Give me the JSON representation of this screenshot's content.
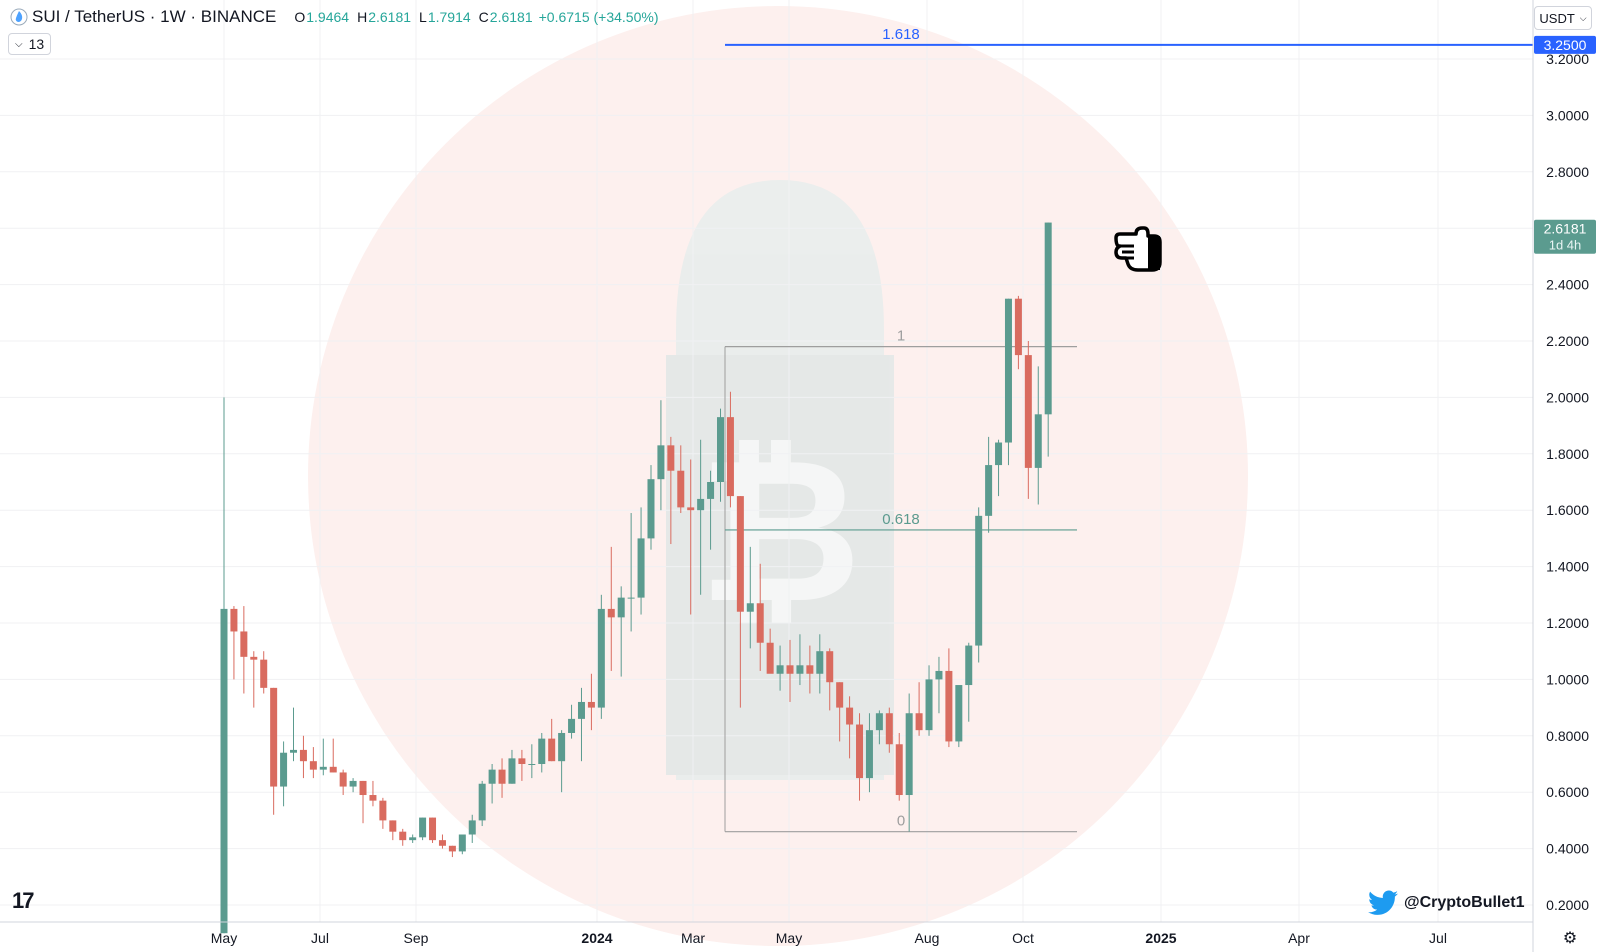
{
  "header": {
    "symbol_title": "SUI / TetherUS · 1W · BINANCE",
    "ohlc": [
      {
        "key": "O",
        "value": "1.9464"
      },
      {
        "key": "H",
        "value": "2.6181"
      },
      {
        "key": "L",
        "value": "1.7914"
      },
      {
        "key": "C",
        "value": "2.6181"
      }
    ],
    "change": "+0.6715 (+34.50%)",
    "indicator_count": "13",
    "currency": "USDT"
  },
  "watermark": "@CryptoBullet1",
  "colors": {
    "up": "#5b9b8f",
    "down": "#d96b5f",
    "fib_target": "#2962ff",
    "fib_mid": "#5b9b8f",
    "fib_box": "#9e9e9e"
  },
  "chart_data": {
    "type": "candlestick",
    "ylim": [
      0.15,
      3.35
    ],
    "y_ticks": [
      "0.2000",
      "0.4000",
      "0.6000",
      "0.8000",
      "1.0000",
      "1.2000",
      "1.4000",
      "1.6000",
      "1.8000",
      "2.0000",
      "2.2000",
      "2.4000",
      "2.6000",
      "2.8000",
      "3.0000",
      "3.2000"
    ],
    "x_ticks": [
      "May",
      "Jul",
      "Sep",
      "2024",
      "Mar",
      "May",
      "Aug",
      "Oct",
      "2025",
      "Apr",
      "Jul"
    ],
    "price_labels": [
      {
        "value": "3.2500",
        "sub": "",
        "color": "#2962ff"
      },
      {
        "value": "2.6181",
        "sub": "1d 4h",
        "color": "#5b9b8f"
      }
    ],
    "fib_levels": [
      {
        "label": "1.618",
        "price": 3.25
      },
      {
        "label": "1",
        "price": 2.18
      },
      {
        "label": "0.618",
        "price": 1.53
      },
      {
        "label": "0",
        "price": 0.46
      }
    ],
    "candles": [
      [
        0.1,
        2.0,
        0.1,
        1.25
      ],
      [
        1.25,
        1.26,
        1.0,
        1.17
      ],
      [
        1.17,
        1.26,
        0.95,
        1.08
      ],
      [
        1.08,
        1.1,
        0.9,
        1.07
      ],
      [
        1.07,
        1.1,
        0.95,
        0.97
      ],
      [
        0.97,
        0.97,
        0.52,
        0.62
      ],
      [
        0.62,
        0.78,
        0.55,
        0.74
      ],
      [
        0.74,
        0.9,
        0.71,
        0.75
      ],
      [
        0.75,
        0.8,
        0.65,
        0.71
      ],
      [
        0.71,
        0.76,
        0.65,
        0.68
      ],
      [
        0.68,
        0.79,
        0.66,
        0.69
      ],
      [
        0.69,
        0.79,
        0.67,
        0.67
      ],
      [
        0.67,
        0.68,
        0.59,
        0.62
      ],
      [
        0.62,
        0.65,
        0.6,
        0.64
      ],
      [
        0.64,
        0.64,
        0.49,
        0.59
      ],
      [
        0.59,
        0.64,
        0.55,
        0.57
      ],
      [
        0.57,
        0.58,
        0.47,
        0.5
      ],
      [
        0.5,
        0.5,
        0.43,
        0.46
      ],
      [
        0.46,
        0.47,
        0.41,
        0.43
      ],
      [
        0.43,
        0.45,
        0.42,
        0.44
      ],
      [
        0.44,
        0.51,
        0.43,
        0.51
      ],
      [
        0.51,
        0.51,
        0.42,
        0.43
      ],
      [
        0.43,
        0.45,
        0.4,
        0.41
      ],
      [
        0.41,
        0.41,
        0.37,
        0.39
      ],
      [
        0.39,
        0.45,
        0.38,
        0.45
      ],
      [
        0.45,
        0.52,
        0.42,
        0.5
      ],
      [
        0.5,
        0.64,
        0.48,
        0.63
      ],
      [
        0.63,
        0.7,
        0.56,
        0.68
      ],
      [
        0.68,
        0.72,
        0.58,
        0.63
      ],
      [
        0.63,
        0.75,
        0.63,
        0.72
      ],
      [
        0.72,
        0.75,
        0.64,
        0.7
      ],
      [
        0.7,
        0.77,
        0.65,
        0.7
      ],
      [
        0.7,
        0.81,
        0.67,
        0.79
      ],
      [
        0.79,
        0.86,
        0.71,
        0.71
      ],
      [
        0.71,
        0.82,
        0.6,
        0.81
      ],
      [
        0.81,
        0.91,
        0.79,
        0.86
      ],
      [
        0.86,
        0.97,
        0.71,
        0.92
      ],
      [
        0.92,
        1.02,
        0.82,
        0.9
      ],
      [
        0.9,
        1.3,
        0.86,
        1.25
      ],
      [
        1.25,
        1.47,
        1.03,
        1.22
      ],
      [
        1.22,
        1.33,
        1.01,
        1.29
      ],
      [
        1.29,
        1.59,
        1.17,
        1.29
      ],
      [
        1.29,
        1.61,
        1.23,
        1.5
      ],
      [
        1.5,
        1.76,
        1.46,
        1.71
      ],
      [
        1.71,
        1.99,
        1.6,
        1.83
      ],
      [
        1.83,
        1.86,
        1.48,
        1.74
      ],
      [
        1.74,
        1.83,
        1.59,
        1.61
      ],
      [
        1.61,
        1.78,
        1.23,
        1.6
      ],
      [
        1.6,
        1.85,
        1.3,
        1.64
      ],
      [
        1.64,
        1.74,
        1.46,
        1.7
      ],
      [
        1.7,
        1.96,
        1.63,
        1.93
      ],
      [
        1.93,
        2.02,
        1.61,
        1.65
      ],
      [
        1.65,
        1.65,
        0.9,
        1.24
      ],
      [
        1.24,
        1.47,
        1.11,
        1.27
      ],
      [
        1.27,
        1.41,
        1.03,
        1.13
      ],
      [
        1.13,
        1.18,
        1.03,
        1.02
      ],
      [
        1.02,
        1.12,
        0.96,
        1.05
      ],
      [
        1.05,
        1.14,
        0.92,
        1.02
      ],
      [
        1.02,
        1.16,
        0.98,
        1.05
      ],
      [
        1.05,
        1.12,
        0.95,
        1.02
      ],
      [
        1.02,
        1.16,
        0.95,
        1.1
      ],
      [
        1.1,
        1.11,
        0.89,
        0.99
      ],
      [
        0.99,
        0.99,
        0.78,
        0.9
      ],
      [
        0.9,
        0.94,
        0.72,
        0.84
      ],
      [
        0.84,
        0.88,
        0.57,
        0.65
      ],
      [
        0.65,
        0.88,
        0.6,
        0.82
      ],
      [
        0.82,
        0.89,
        0.77,
        0.88
      ],
      [
        0.88,
        0.9,
        0.74,
        0.77
      ],
      [
        0.77,
        0.81,
        0.57,
        0.59
      ],
      [
        0.59,
        0.95,
        0.46,
        0.88
      ],
      [
        0.88,
        0.99,
        0.8,
        0.82
      ],
      [
        0.82,
        1.05,
        0.8,
        1.0
      ],
      [
        1.0,
        1.08,
        0.88,
        1.03
      ],
      [
        1.03,
        1.11,
        0.76,
        0.78
      ],
      [
        0.78,
        0.97,
        0.76,
        0.98
      ],
      [
        0.98,
        1.13,
        0.85,
        1.12
      ],
      [
        1.12,
        1.61,
        1.06,
        1.58
      ],
      [
        1.58,
        1.86,
        1.52,
        1.76
      ],
      [
        1.76,
        1.85,
        1.65,
        1.84
      ],
      [
        1.84,
        2.35,
        1.76,
        2.35
      ],
      [
        2.35,
        2.36,
        2.1,
        2.15
      ],
      [
        2.15,
        2.2,
        1.64,
        1.75
      ],
      [
        1.75,
        2.11,
        1.62,
        1.94
      ],
      [
        1.94,
        2.62,
        1.79,
        2.62
      ]
    ]
  }
}
